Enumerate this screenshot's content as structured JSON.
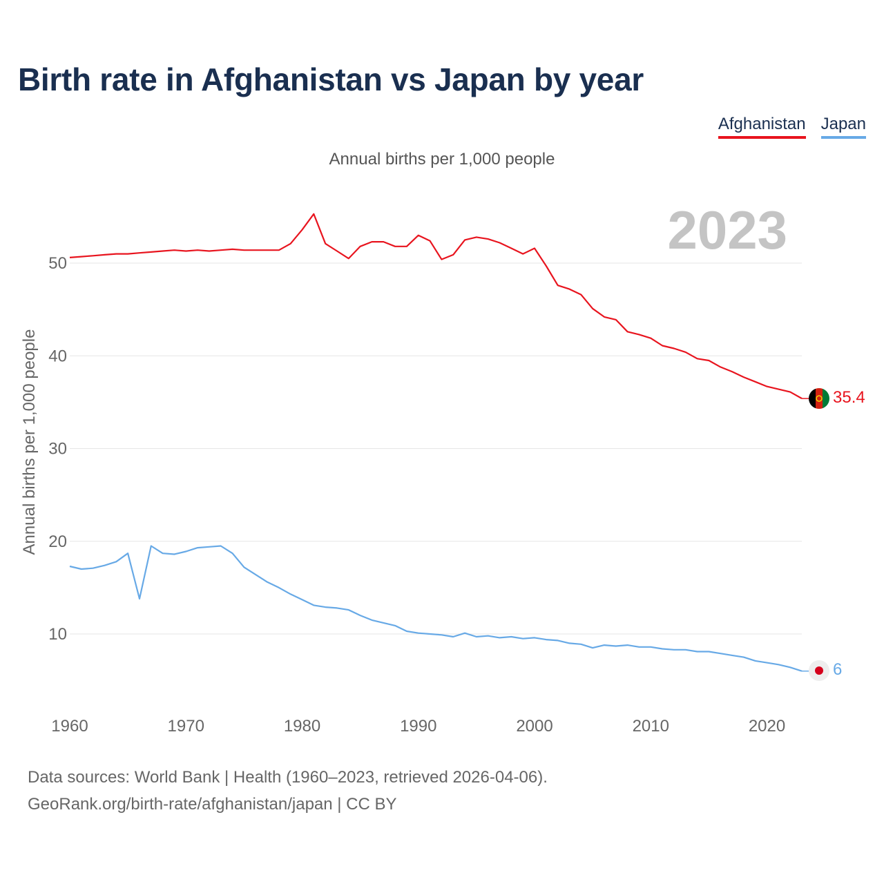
{
  "title": "Birth rate in Afghanistan vs Japan by year",
  "legend": {
    "afghanistan": "Afghanistan",
    "japan": "Japan"
  },
  "footer": {
    "line1": "Data sources: World Bank | Health (1960–2023, retrieved 2026-04-06).",
    "line2": "GeoRank.org/birth-rate/afghanistan/japan | CC BY"
  },
  "chart_data": {
    "type": "line",
    "title": "Annual births per 1,000 people",
    "xlabel": "",
    "ylabel": "Annual births per 1,000 people",
    "year_label": "2023",
    "xlim": [
      1960,
      2023
    ],
    "ylim": [
      3,
      57
    ],
    "x_ticks": [
      "1960",
      "1970",
      "1980",
      "1990",
      "2000",
      "2010",
      "2020"
    ],
    "y_ticks": [
      "10",
      "20",
      "30",
      "40",
      "50"
    ],
    "grid": true,
    "legend_position": "top-right",
    "x": [
      1960,
      1961,
      1962,
      1963,
      1964,
      1965,
      1966,
      1967,
      1968,
      1969,
      1970,
      1971,
      1972,
      1973,
      1974,
      1975,
      1976,
      1977,
      1978,
      1979,
      1980,
      1981,
      1982,
      1983,
      1984,
      1985,
      1986,
      1987,
      1988,
      1989,
      1990,
      1991,
      1992,
      1993,
      1994,
      1995,
      1996,
      1997,
      1998,
      1999,
      2000,
      2001,
      2002,
      2003,
      2004,
      2005,
      2006,
      2007,
      2008,
      2009,
      2010,
      2011,
      2012,
      2013,
      2014,
      2015,
      2016,
      2017,
      2018,
      2019,
      2020,
      2021,
      2022,
      2023
    ],
    "series": [
      {
        "name": "Afghanistan",
        "color": "#e8141e",
        "end_label": "35.4",
        "values": [
          50.6,
          50.7,
          50.8,
          50.9,
          51.0,
          51.0,
          51.1,
          51.2,
          51.3,
          51.4,
          51.3,
          51.4,
          51.3,
          51.4,
          51.5,
          51.4,
          51.4,
          51.4,
          51.4,
          52.1,
          53.6,
          55.3,
          52.1,
          51.3,
          50.5,
          51.8,
          52.3,
          52.3,
          51.8,
          51.8,
          53.0,
          52.4,
          50.4,
          50.9,
          52.5,
          52.8,
          52.6,
          52.2,
          51.6,
          51.0,
          51.6,
          49.7,
          47.6,
          47.2,
          46.6,
          45.1,
          44.2,
          43.9,
          42.6,
          42.3,
          41.9,
          41.1,
          40.8,
          40.4,
          39.7,
          39.5,
          38.8,
          38.3,
          37.7,
          37.2,
          36.7,
          36.4,
          36.1,
          35.4
        ]
      },
      {
        "name": "Japan",
        "color": "#67a9e6",
        "end_label": "6",
        "values": [
          17.3,
          17.0,
          17.1,
          17.4,
          17.8,
          18.7,
          13.8,
          19.5,
          18.7,
          18.6,
          18.9,
          19.3,
          19.4,
          19.5,
          18.7,
          17.2,
          16.4,
          15.6,
          15.0,
          14.3,
          13.7,
          13.1,
          12.9,
          12.8,
          12.6,
          12.0,
          11.5,
          11.2,
          10.9,
          10.3,
          10.1,
          10.0,
          9.9,
          9.7,
          10.1,
          9.7,
          9.8,
          9.6,
          9.7,
          9.5,
          9.6,
          9.4,
          9.3,
          9.0,
          8.9,
          8.5,
          8.8,
          8.7,
          8.8,
          8.6,
          8.6,
          8.4,
          8.3,
          8.3,
          8.1,
          8.1,
          7.9,
          7.7,
          7.5,
          7.1,
          6.9,
          6.7,
          6.4,
          6.0
        ]
      }
    ]
  }
}
